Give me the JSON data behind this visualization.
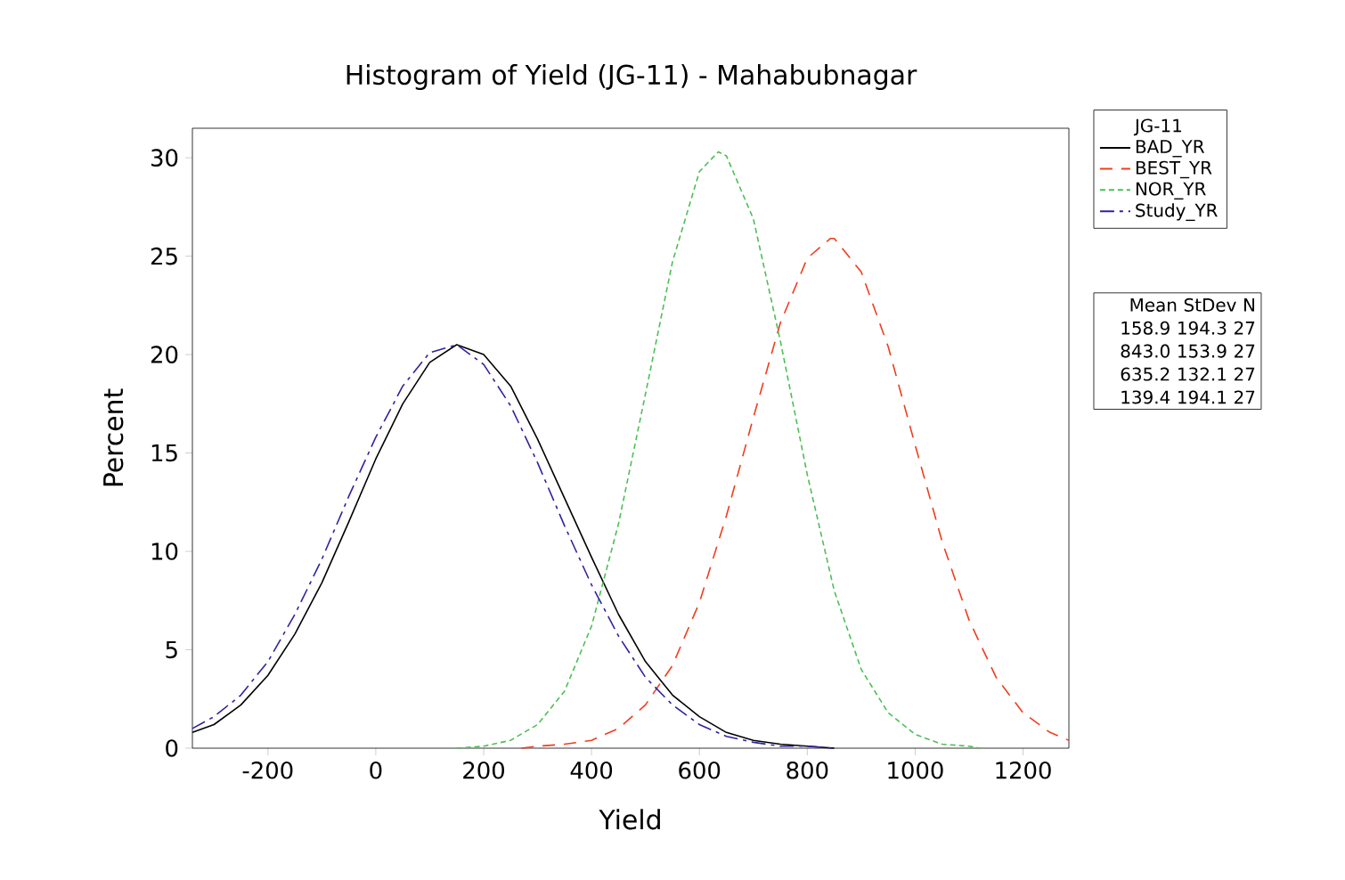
{
  "chart_data": {
    "type": "line",
    "title": "Histogram of Yield (JG-11) - Mahabubnagar",
    "xlabel": "Yield",
    "ylabel": "Percent",
    "legend_title": "JG-11",
    "legend": "right",
    "grid": false,
    "marker": "none",
    "xlim": [
      -340,
      1285
    ],
    "ylim": [
      0,
      31.5
    ],
    "xticks": [
      -200,
      0,
      200,
      400,
      600,
      800,
      1000,
      1200
    ],
    "yticks": [
      0,
      5,
      10,
      15,
      20,
      25,
      30
    ],
    "series": [
      {
        "name": "BAD_YR",
        "color": "#000000",
        "line_style": "solid",
        "x": [
          -340,
          -300,
          -250,
          -200,
          -150,
          -100,
          -50,
          0,
          50,
          100,
          150,
          200,
          250,
          300,
          350,
          400,
          450,
          500,
          550,
          600,
          650,
          700,
          750,
          800,
          850
        ],
        "values": [
          0.8,
          1.2,
          2.2,
          3.7,
          5.8,
          8.4,
          11.5,
          14.7,
          17.5,
          19.6,
          20.5,
          20.0,
          18.4,
          15.7,
          12.7,
          9.7,
          6.8,
          4.4,
          2.7,
          1.6,
          0.8,
          0.4,
          0.2,
          0.1,
          0.0
        ]
      },
      {
        "name": "BEST_YR",
        "color": "#f03c1e",
        "line_style": "dashed",
        "x": [
          270,
          300,
          350,
          400,
          450,
          500,
          550,
          600,
          650,
          700,
          750,
          800,
          843,
          850,
          900,
          950,
          1000,
          1050,
          1100,
          1150,
          1200,
          1250,
          1285
        ],
        "values": [
          0.0,
          0.1,
          0.2,
          0.4,
          1.0,
          2.2,
          4.2,
          7.4,
          11.8,
          16.8,
          21.6,
          24.9,
          25.9,
          25.9,
          24.2,
          20.4,
          15.4,
          10.5,
          6.5,
          3.6,
          1.8,
          0.8,
          0.4
        ]
      },
      {
        "name": "NOR_YR",
        "color": "#4cbf55",
        "line_style": "dotted",
        "x": [
          150,
          200,
          250,
          300,
          350,
          400,
          450,
          500,
          550,
          600,
          635,
          650,
          700,
          750,
          800,
          850,
          900,
          950,
          1000,
          1050,
          1100,
          1120
        ],
        "values": [
          0.0,
          0.1,
          0.4,
          1.2,
          2.9,
          6.2,
          11.4,
          18.0,
          24.7,
          29.3,
          30.3,
          30.1,
          26.9,
          20.7,
          13.9,
          8.0,
          4.0,
          1.8,
          0.7,
          0.2,
          0.1,
          0.0
        ]
      },
      {
        "name": "Study_YR",
        "color": "#2e23a0",
        "line_style": "dashdot",
        "x": [
          -340,
          -300,
          -250,
          -200,
          -150,
          -100,
          -50,
          0,
          50,
          100,
          150,
          200,
          250,
          300,
          350,
          400,
          450,
          500,
          550,
          600,
          650,
          700,
          750,
          800,
          850
        ],
        "values": [
          1.0,
          1.6,
          2.7,
          4.4,
          6.8,
          9.6,
          12.8,
          15.8,
          18.4,
          20.1,
          20.5,
          19.5,
          17.4,
          14.5,
          11.3,
          8.3,
          5.7,
          3.6,
          2.2,
          1.2,
          0.6,
          0.3,
          0.1,
          0.1,
          0.0
        ]
      }
    ],
    "annotations": [
      "Mean   StDev   N",
      "158.9   194.3   27",
      "843.0   153.9   27",
      "635.2   132.1   27",
      "139.4   194.1   27"
    ]
  }
}
